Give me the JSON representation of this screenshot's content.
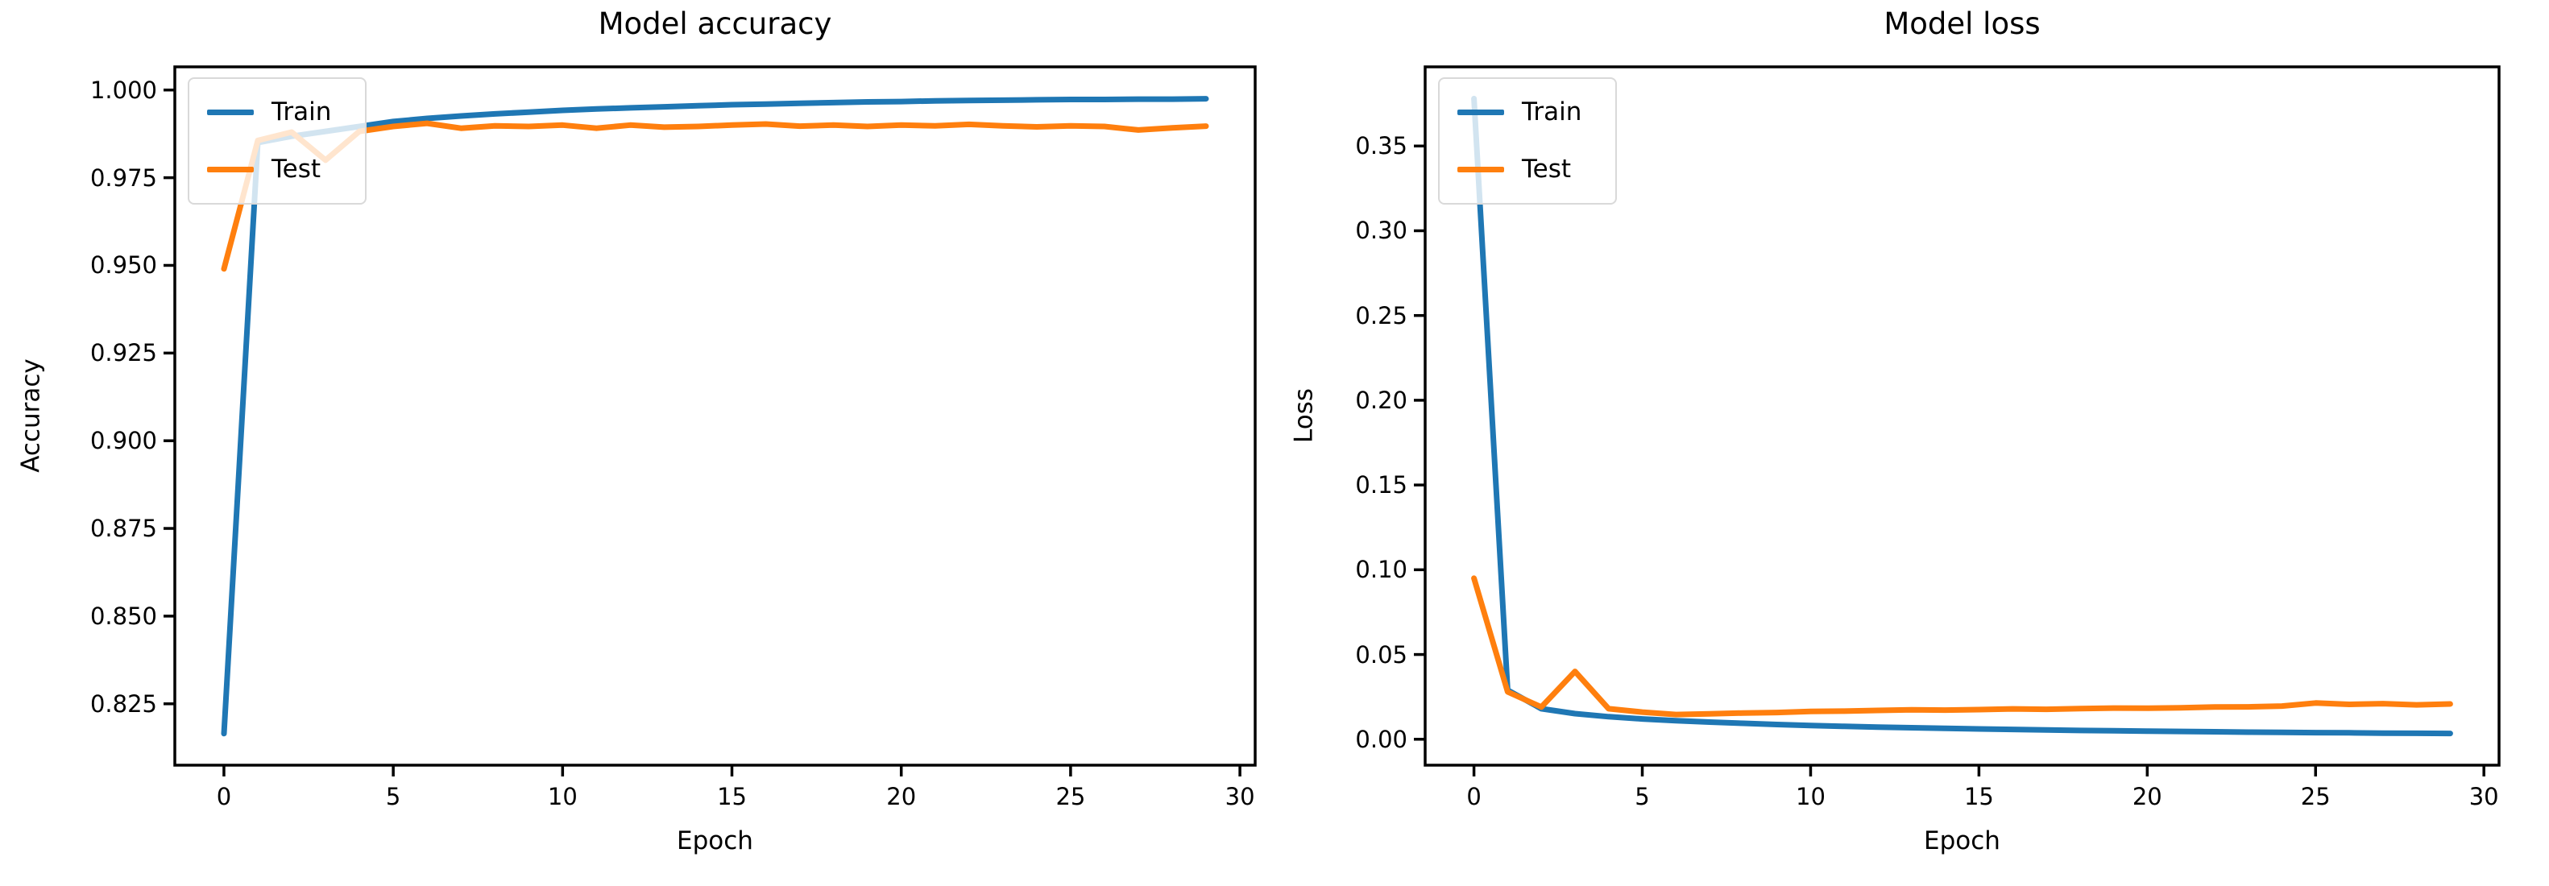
{
  "figure": {
    "background": "#ffffff"
  },
  "colors": {
    "train": "#1f77b4",
    "test": "#ff7f0e",
    "spine": "#000000",
    "legend_border": "#d9d9d9"
  },
  "chart_data": [
    {
      "type": "line",
      "title": "Model accuracy",
      "xlabel": "Epoch",
      "ylabel": "Accuracy",
      "grid": false,
      "legend_position": "upper-left",
      "xlim": [
        -1.45,
        30.45
      ],
      "ylim": [
        0.8075,
        1.0066
      ],
      "xticks": [
        0,
        5,
        10,
        15,
        20,
        25,
        30
      ],
      "xticklabels": [
        "0",
        "5",
        "10",
        "15",
        "20",
        "25",
        "30"
      ],
      "yticks": [
        0.825,
        0.85,
        0.875,
        0.9,
        0.925,
        0.95,
        0.975,
        1.0
      ],
      "yticklabels": [
        "0.825",
        "0.850",
        "0.875",
        "0.900",
        "0.925",
        "0.950",
        "0.975",
        "1.000"
      ],
      "x": [
        0,
        1,
        2,
        3,
        4,
        5,
        6,
        7,
        8,
        9,
        10,
        11,
        12,
        13,
        14,
        15,
        16,
        17,
        18,
        19,
        20,
        21,
        22,
        23,
        24,
        25,
        26,
        27,
        28,
        29
      ],
      "series": [
        {
          "name": "Train",
          "color": "#1f77b4",
          "values": [
            0.8165,
            0.985,
            0.9868,
            0.9882,
            0.9896,
            0.991,
            0.9919,
            0.9926,
            0.9932,
            0.9937,
            0.9942,
            0.9946,
            0.9949,
            0.9952,
            0.9955,
            0.9958,
            0.996,
            0.9962,
            0.9964,
            0.9966,
            0.9967,
            0.9969,
            0.997,
            0.9971,
            0.9972,
            0.9973,
            0.9973,
            0.9974,
            0.9974,
            0.9975
          ]
        },
        {
          "name": "Test",
          "color": "#ff7f0e",
          "values": [
            0.949,
            0.9856,
            0.988,
            0.98,
            0.9882,
            0.9896,
            0.9905,
            0.9891,
            0.9898,
            0.9896,
            0.99,
            0.9891,
            0.99,
            0.9894,
            0.9896,
            0.99,
            0.9903,
            0.9897,
            0.99,
            0.9896,
            0.99,
            0.9898,
            0.9902,
            0.9898,
            0.9895,
            0.9898,
            0.9896,
            0.9886,
            0.9892,
            0.9897
          ]
        }
      ]
    },
    {
      "type": "line",
      "title": "Model loss",
      "xlabel": "Epoch",
      "ylabel": "Loss",
      "grid": false,
      "legend_position": "upper-left",
      "xlim": [
        -1.45,
        30.45
      ],
      "ylim": [
        -0.0153,
        0.3967
      ],
      "xticks": [
        0,
        5,
        10,
        15,
        20,
        25,
        30
      ],
      "xticklabels": [
        "0",
        "5",
        "10",
        "15",
        "20",
        "25",
        "30"
      ],
      "yticks": [
        0.0,
        0.05,
        0.1,
        0.15,
        0.2,
        0.25,
        0.3,
        0.35
      ],
      "yticklabels": [
        "0.00",
        "0.05",
        "0.10",
        "0.15",
        "0.20",
        "0.25",
        "0.30",
        "0.35"
      ],
      "x": [
        0,
        1,
        2,
        3,
        4,
        5,
        6,
        7,
        8,
        9,
        10,
        11,
        12,
        13,
        14,
        15,
        16,
        17,
        18,
        19,
        20,
        21,
        22,
        23,
        24,
        25,
        26,
        27,
        28,
        29
      ],
      "series": [
        {
          "name": "Train",
          "color": "#1f77b4",
          "values": [
            0.378,
            0.029,
            0.018,
            0.0151,
            0.0133,
            0.012,
            0.011,
            0.0101,
            0.0094,
            0.0087,
            0.0081,
            0.0076,
            0.0072,
            0.0068,
            0.0064,
            0.0061,
            0.0058,
            0.0055,
            0.0052,
            0.005,
            0.0048,
            0.0046,
            0.0044,
            0.0042,
            0.0041,
            0.0039,
            0.0038,
            0.0036,
            0.0035,
            0.0034
          ]
        },
        {
          "name": "Test",
          "color": "#ff7f0e",
          "values": [
            0.095,
            0.028,
            0.019,
            0.04,
            0.018,
            0.016,
            0.0146,
            0.015,
            0.0155,
            0.0158,
            0.0164,
            0.0166,
            0.017,
            0.0174,
            0.0172,
            0.0175,
            0.0179,
            0.0177,
            0.0181,
            0.0184,
            0.0183,
            0.0186,
            0.019,
            0.0191,
            0.0196,
            0.0214,
            0.0206,
            0.021,
            0.0203,
            0.0208
          ]
        }
      ]
    }
  ]
}
